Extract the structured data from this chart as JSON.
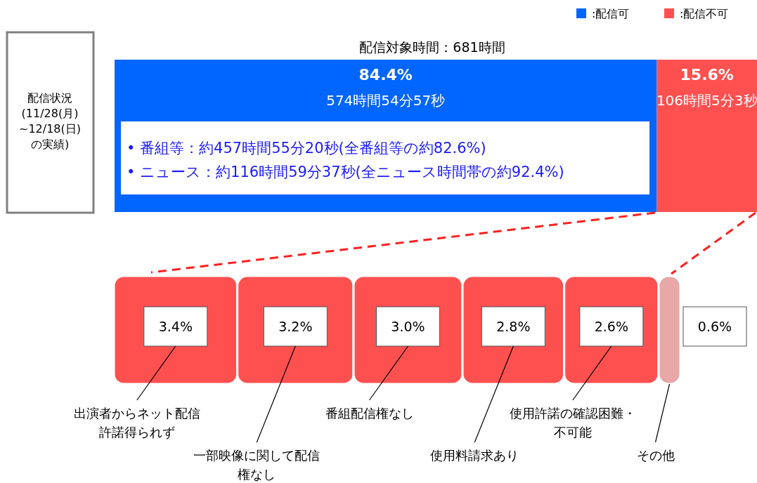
{
  "chart_data": [
    {
      "type": "bar",
      "orientation": "horizontal",
      "stacked": true,
      "title": "配信対象時間：681時間",
      "ylabel": "配信状況(11/28(月)~12/18(日)の実績)",
      "categories": [
        null
      ],
      "xlim": [
        0,
        100
      ],
      "legend": "top right",
      "series": [
        {
          "name": ":配信可",
          "color": "#0066ff",
          "values": [
            84.4
          ],
          "value_labels": [
            "84.4%"
          ]
        },
        {
          "name": ":配信不可",
          "color": "#ff5050",
          "values": [
            15.6
          ],
          "value_labels": [
            "15.6%"
          ]
        }
      ],
      "annotations": [
        "574時間54分57秒",
        "106時間5分3秒",
        "• 番組等：約457時間55分20秒(全番組等の約82.6%)",
        "• ニュース：約116時間59分37秒(全ニュース時間帯の約92.4%)"
      ]
    },
    {
      "type": "bar",
      "orientation": "horizontal",
      "stacked": true,
      "categories": [
        null
      ],
      "xlim": [
        0,
        15.6
      ],
      "series": [
        {
          "name": "出演者からネット配信許諾得られず",
          "color": "#ff5050",
          "values": [
            3.4
          ],
          "value_labels": [
            "3.4%"
          ]
        },
        {
          "name": "一部映像に関して配信権なし",
          "color": "#ff5050",
          "values": [
            3.2
          ],
          "value_labels": [
            "3.2%"
          ]
        },
        {
          "name": "番組配信権なし",
          "color": "#ff5050",
          "values": [
            3.0
          ],
          "value_labels": [
            "3.0%"
          ]
        },
        {
          "name": "使用料請求あり",
          "color": "#ff5050",
          "values": [
            2.8
          ],
          "value_labels": [
            "2.8%"
          ]
        },
        {
          "name": "使用許諾の確認困難・不可能",
          "color": "#ff5050",
          "values": [
            2.6
          ],
          "value_labels": [
            "2.6%"
          ]
        },
        {
          "name": "その他",
          "color": "#e8a8a8",
          "values": [
            0.6
          ],
          "value_labels": [
            "0.6%"
          ]
        }
      ]
    }
  ]
}
